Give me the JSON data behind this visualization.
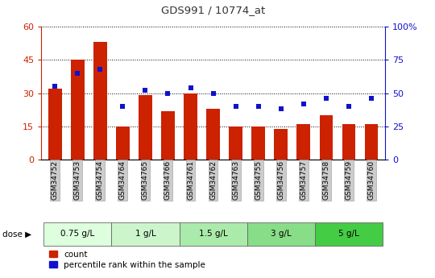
{
  "title": "GDS991 / 10774_at",
  "samples": [
    "GSM34752",
    "GSM34753",
    "GSM34754",
    "GSM34764",
    "GSM34765",
    "GSM34766",
    "GSM34761",
    "GSM34762",
    "GSM34763",
    "GSM34755",
    "GSM34756",
    "GSM34757",
    "GSM34758",
    "GSM34759",
    "GSM34760"
  ],
  "counts": [
    32,
    45,
    53,
    15,
    29,
    22,
    30,
    23,
    15,
    15,
    14,
    16,
    20,
    16,
    16
  ],
  "percentiles": [
    55,
    65,
    68,
    40,
    52,
    50,
    54,
    50,
    40,
    40,
    38,
    42,
    46,
    40,
    46
  ],
  "bar_color": "#cc2200",
  "dot_color": "#1111cc",
  "ylim_left": [
    0,
    60
  ],
  "ylim_right": [
    0,
    100
  ],
  "yticks_left": [
    0,
    15,
    30,
    45,
    60
  ],
  "yticks_left_labels": [
    "0",
    "15",
    "30",
    "45",
    "60"
  ],
  "yticks_right": [
    0,
    25,
    50,
    75,
    100
  ],
  "yticks_right_labels": [
    "0",
    "25",
    "50",
    "75",
    "100%"
  ],
  "left_tick_color": "#cc2200",
  "right_tick_color": "#1111cc",
  "dose_groups": [
    {
      "label": "0.75 g/L",
      "indices": [
        0,
        1,
        2
      ],
      "color": "#ddffdd"
    },
    {
      "label": "1 g/L",
      "indices": [
        3,
        4,
        5
      ],
      "color": "#ccf5cc"
    },
    {
      "label": "1.5 g/L",
      "indices": [
        6,
        7,
        8
      ],
      "color": "#aaeaaa"
    },
    {
      "label": "3 g/L",
      "indices": [
        9,
        10,
        11
      ],
      "color": "#88dd88"
    },
    {
      "label": "5 g/L",
      "indices": [
        12,
        13,
        14
      ],
      "color": "#44cc44"
    }
  ],
  "dose_label": "dose",
  "legend_count_label": "count",
  "legend_percentile_label": "percentile rank within the sample",
  "bg_color": "#ffffff",
  "xtick_bg": "#cccccc"
}
